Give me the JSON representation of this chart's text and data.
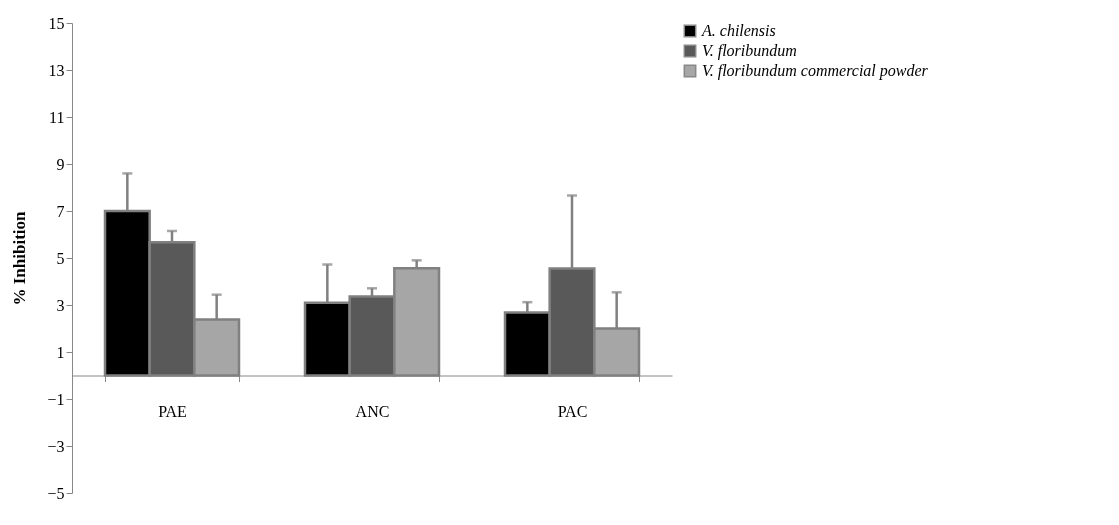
{
  "chart_data": {
    "type": "bar",
    "ylabel": "%  Inhibition",
    "categories": [
      "PAE",
      "ANC",
      "PAC"
    ],
    "series": [
      {
        "name": "A. chilensis",
        "color": "#000000",
        "values": [
          7.0,
          3.1,
          2.68
        ],
        "errors": [
          [
            7.0,
            8.6
          ],
          [
            3.1,
            4.72
          ],
          [
            2.68,
            3.12
          ]
        ]
      },
      {
        "name": "V. floribundum",
        "color": "#595959",
        "values": [
          5.67,
          3.36,
          4.55
        ],
        "errors": [
          [
            5.67,
            6.15
          ],
          [
            3.36,
            3.71
          ],
          [
            4.55,
            7.66
          ]
        ]
      },
      {
        "name": "V. floribundum commercial powder",
        "color": "#a6a6a6",
        "values": [
          2.38,
          4.56,
          2.0
        ],
        "errors": [
          [
            2.38,
            3.44
          ],
          [
            4.56,
            4.9
          ],
          [
            2.0,
            3.54
          ]
        ]
      }
    ],
    "ylim": [
      -5,
      15
    ],
    "yticks": [
      -5,
      -3,
      -1,
      1,
      3,
      5,
      7,
      9,
      11,
      13,
      15
    ],
    "grid": false,
    "legend": "top right"
  }
}
